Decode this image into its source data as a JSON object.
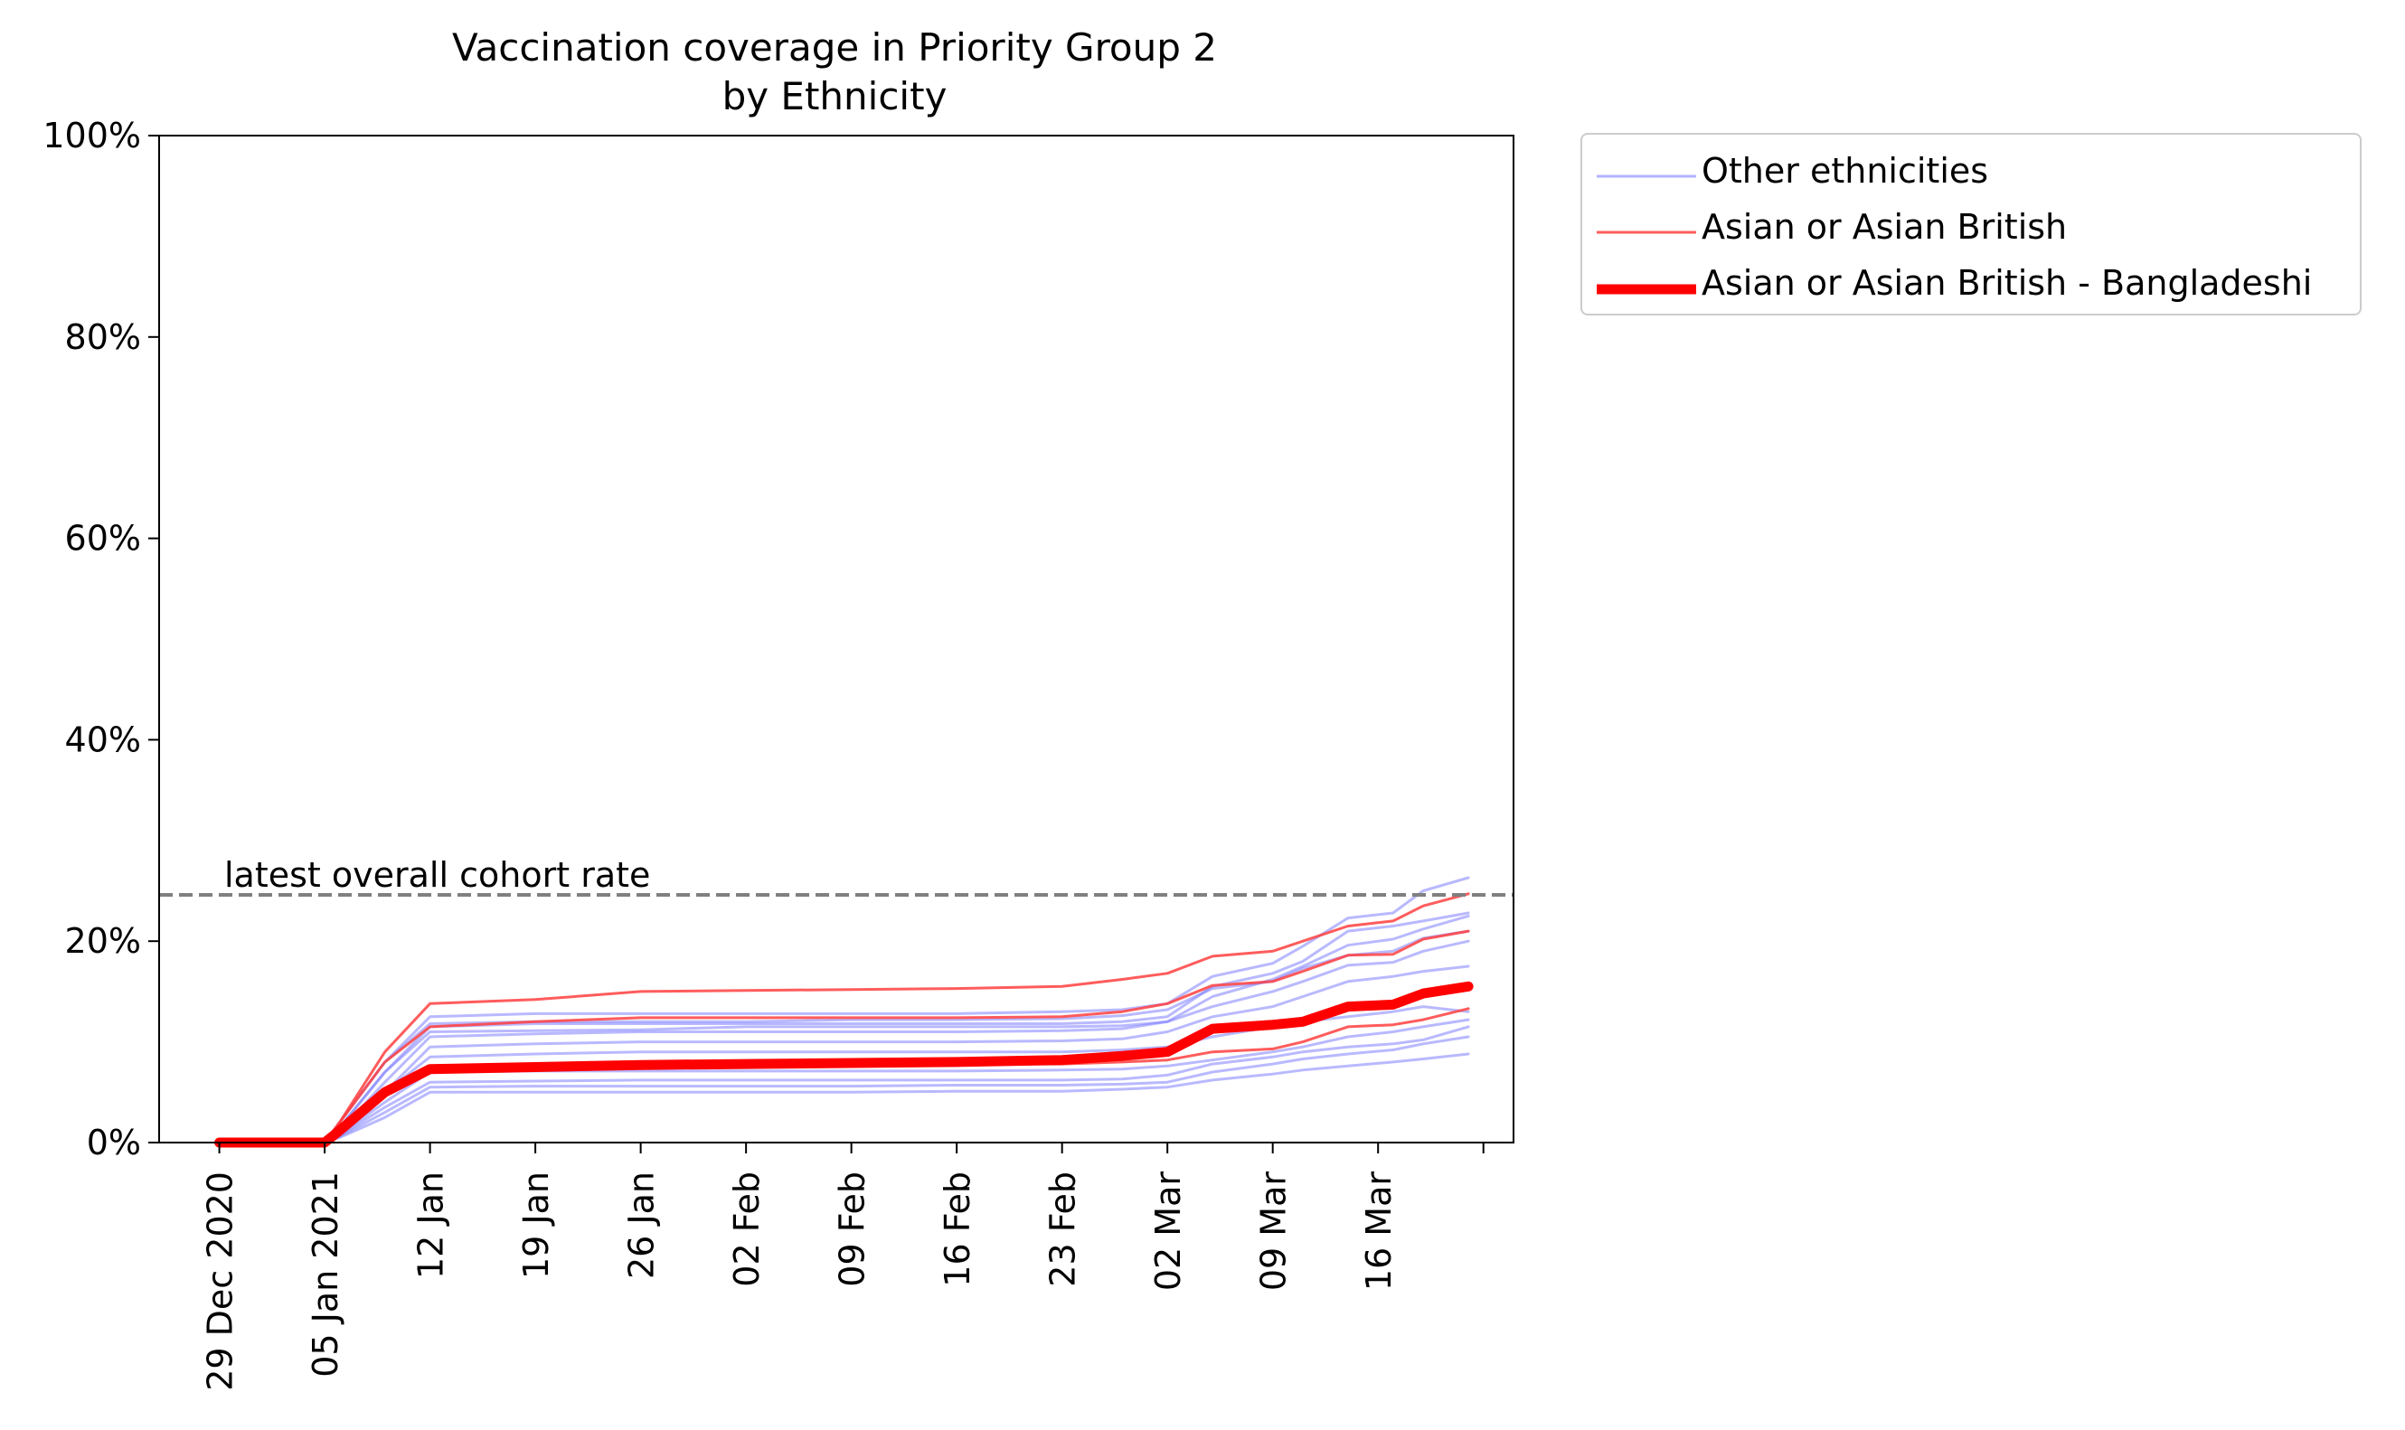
{
  "chart_data": {
    "type": "line",
    "title": "Vaccination coverage in Priority Group 2",
    "subtitle": "by Ethnicity",
    "xlabel": "",
    "ylabel": "",
    "ylim": [
      0,
      100
    ],
    "xlim": [
      "2020-12-24",
      "2021-03-24"
    ],
    "x_ticks": [
      "29 Dec 2020",
      "05 Jan 2021",
      "12 Jan",
      "19 Jan",
      "26 Jan",
      "02 Feb",
      "09 Feb",
      "16 Feb",
      "23 Feb",
      "02 Mar",
      "09 Mar",
      "16 Mar"
    ],
    "y_ticks": [
      "0%",
      "20%",
      "40%",
      "60%",
      "80%",
      "100%"
    ],
    "grid": false,
    "legend_placement": "outside top-right",
    "reference_line": {
      "label": "latest overall cohort rate",
      "value": 24.6,
      "color": "#808080"
    },
    "x_dates": [
      "2020-12-28",
      "2021-01-04",
      "2021-01-05",
      "2021-01-08",
      "2021-01-11",
      "2021-01-18",
      "2021-01-25",
      "2021-02-01",
      "2021-02-08",
      "2021-02-15",
      "2021-02-22",
      "2021-02-26",
      "2021-03-01",
      "2021-03-04",
      "2021-03-08",
      "2021-03-10",
      "2021-03-13",
      "2021-03-16",
      "2021-03-18",
      "2021-03-21"
    ],
    "colors": {
      "other": "#8080ff",
      "asian": "#ff4040",
      "bangladeshi": "#ff0000"
    },
    "legend": [
      {
        "label": "Other ethnicities",
        "style": "other"
      },
      {
        "label": "Asian or Asian British",
        "style": "asian"
      },
      {
        "label": "Asian or Asian British - Bangladeshi",
        "style": "bangladeshi"
      }
    ],
    "series": [
      {
        "group": "other",
        "values": [
          0,
          0,
          2,
          8,
          12.5,
          12.8,
          12.8,
          12.8,
          12.8,
          12.8,
          13.0,
          13.2,
          13.8,
          16.5,
          17.8,
          19.5,
          22.3,
          22.8,
          25.0,
          26.3
        ]
      },
      {
        "group": "other",
        "values": [
          0,
          0,
          1.5,
          7,
          11.5,
          11.8,
          11.8,
          11.8,
          11.8,
          11.8,
          11.8,
          12.0,
          12.5,
          15.5,
          16.8,
          18.0,
          21.0,
          21.5,
          22.0,
          22.8
        ]
      },
      {
        "group": "other",
        "values": [
          0,
          0,
          1.5,
          7,
          11.0,
          11.1,
          11.2,
          11.5,
          11.5,
          11.5,
          11.5,
          11.6,
          12.0,
          14.5,
          16.2,
          17.5,
          19.6,
          20.2,
          21.2,
          22.5
        ]
      },
      {
        "group": "other",
        "values": [
          0,
          0,
          1.2,
          6,
          10.5,
          10.8,
          11.0,
          11.0,
          11.0,
          11.0,
          11.1,
          11.3,
          12.0,
          13.5,
          15.0,
          16.0,
          17.6,
          17.9,
          19.0,
          20.0
        ]
      },
      {
        "group": "other",
        "values": [
          0,
          0,
          1,
          5,
          9.5,
          9.8,
          10.0,
          10.0,
          10.0,
          10.0,
          10.1,
          10.3,
          11.0,
          12.5,
          13.5,
          14.5,
          16.0,
          16.5,
          17.0,
          17.5
        ]
      },
      {
        "group": "other",
        "values": [
          0,
          0,
          1,
          5,
          8.5,
          8.8,
          9.0,
          9.0,
          9.0,
          9.0,
          9.0,
          9.2,
          9.5,
          10.5,
          11.5,
          12.0,
          12.5,
          13.0,
          13.5,
          13.0
        ]
      },
      {
        "group": "other",
        "values": [
          0,
          0,
          0.8,
          4,
          7.0,
          7.1,
          7.1,
          7.1,
          7.1,
          7.1,
          7.2,
          7.3,
          7.6,
          8.2,
          9.0,
          9.5,
          10.5,
          11.0,
          11.5,
          12.2
        ]
      },
      {
        "group": "other",
        "values": [
          0,
          0,
          0.7,
          3.5,
          6.0,
          6.1,
          6.2,
          6.2,
          6.2,
          6.2,
          6.2,
          6.3,
          6.7,
          7.8,
          8.5,
          9.0,
          9.5,
          9.8,
          10.2,
          11.5
        ]
      },
      {
        "group": "other",
        "values": [
          0,
          0,
          0.6,
          3,
          5.5,
          5.6,
          5.6,
          5.6,
          5.6,
          5.7,
          5.7,
          5.8,
          6.0,
          7.0,
          7.8,
          8.3,
          8.8,
          9.2,
          9.8,
          10.5
        ]
      },
      {
        "group": "other",
        "values": [
          0,
          0,
          0.5,
          2.5,
          5.0,
          5.0,
          5.0,
          5.0,
          5.0,
          5.1,
          5.1,
          5.3,
          5.5,
          6.2,
          6.8,
          7.2,
          7.6,
          8.0,
          8.3,
          8.8
        ]
      },
      {
        "group": "other",
        "values": [
          0,
          0,
          2,
          8,
          11.8,
          12.0,
          12.0,
          12.0,
          12.2,
          12.2,
          12.3,
          12.6,
          13.2,
          15.3,
          16.0,
          17.3,
          18.6,
          19.0,
          20.3,
          21.0
        ]
      },
      {
        "group": "asian",
        "values": [
          0,
          0,
          2,
          9,
          13.8,
          14.2,
          15.0,
          15.1,
          15.2,
          15.3,
          15.5,
          16.2,
          16.8,
          18.5,
          19.0,
          20.0,
          21.5,
          22.0,
          23.5,
          24.7
        ]
      },
      {
        "group": "asian",
        "values": [
          0,
          0,
          2,
          8,
          11.5,
          12.0,
          12.4,
          12.4,
          12.4,
          12.4,
          12.5,
          13.0,
          13.8,
          15.6,
          16.0,
          17.0,
          18.6,
          18.7,
          20.2,
          21.0
        ]
      },
      {
        "group": "asian",
        "values": [
          0,
          0,
          1,
          5,
          7.5,
          7.6,
          7.7,
          7.8,
          7.8,
          7.8,
          7.8,
          8.0,
          8.2,
          9.0,
          9.3,
          10.0,
          11.5,
          11.7,
          12.2,
          13.3
        ]
      },
      {
        "group": "bangladeshi",
        "values": [
          0,
          0,
          1.2,
          5,
          7.3,
          7.5,
          7.7,
          7.8,
          7.9,
          8.0,
          8.2,
          8.6,
          9.0,
          11.3,
          11.7,
          12.0,
          13.5,
          13.7,
          14.8,
          15.5
        ]
      }
    ]
  }
}
